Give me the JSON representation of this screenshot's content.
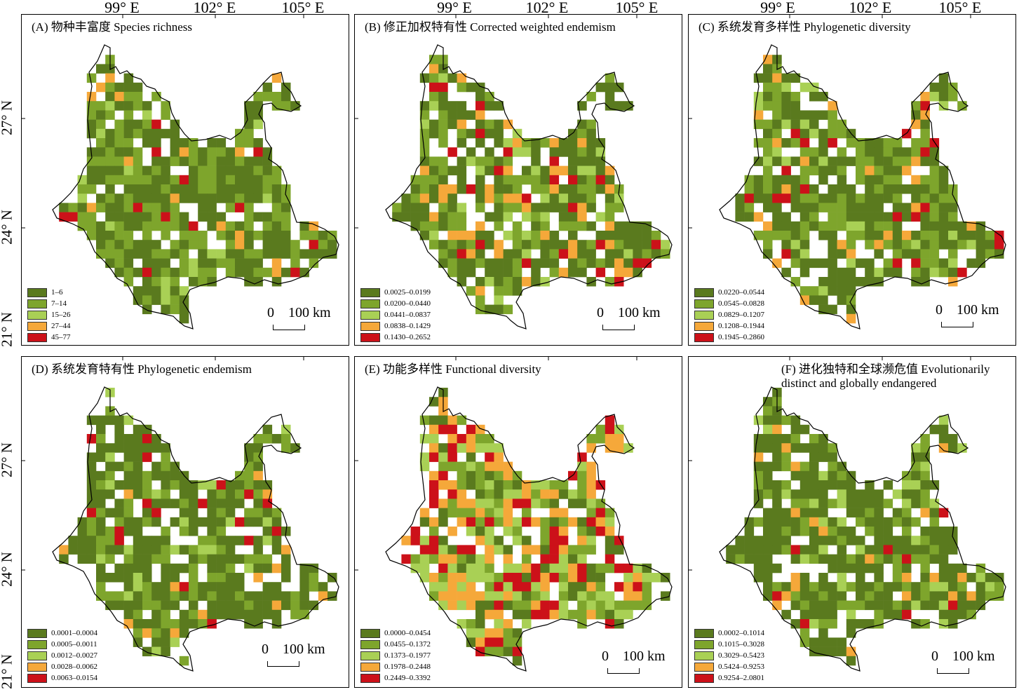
{
  "axes": {
    "longitude_labels": [
      "99° E",
      "102° E",
      "105° E"
    ],
    "latitude_labels": [
      "27° N",
      "24° N",
      "21° N"
    ]
  },
  "panels": [
    {
      "id": "A",
      "title": "(A) 物种丰富度 Species richness",
      "legend": [
        "1–6",
        "7–14",
        "15–26",
        "27–44",
        "45–77"
      ],
      "scalebar": {
        "zero": "0",
        "distance": "100 km"
      }
    },
    {
      "id": "B",
      "title": "(B) 修正加权特有性 Corrected weighted endemism",
      "legend": [
        "0.0025–0.0199",
        "0.0200–0.0440",
        "0.0441–0.0837",
        "0.0838–0.1429",
        "0.1430–0.2652"
      ],
      "scalebar": {
        "zero": "0",
        "distance": "100 km"
      }
    },
    {
      "id": "C",
      "title": "(C) 系统发育多样性 Phylogenetic diversity",
      "legend": [
        "0.0220–0.0544",
        "0.0545–0.0828",
        "0.0829–0.1207",
        "0.1208–0.1944",
        "0.1945–0.2860"
      ],
      "scalebar": {
        "zero": "0",
        "distance": "100 km"
      }
    },
    {
      "id": "D",
      "title": "(D) 系统发育特有性 Phylogenetic endemism",
      "legend": [
        "0.0001–0.0004",
        "0.0005–0.0011",
        "0.0012–0.0027",
        "0.0028–0.0062",
        "0.0063–0.0154"
      ],
      "scalebar": {
        "zero": "0",
        "distance": "100 km"
      }
    },
    {
      "id": "E",
      "title": "(E) 功能多样性 Functional diversity",
      "legend": [
        "0.0000–0.0454",
        "0.0455–0.1372",
        "0.1373–0.1977",
        "0.1978–0.2448",
        "0.2449–0.3392"
      ],
      "scalebar": {
        "zero": "0",
        "distance": "100 km"
      }
    },
    {
      "id": "F",
      "title": "(F) 进化独特和全球濒危值 Evolutionarily distinct and globally endangered",
      "legend": [
        "0.0002–0.1014",
        "0.1015–0.3028",
        "0.3029–0.5423",
        "0.5424–0.9253",
        "0.9254–2.0801"
      ],
      "scalebar": {
        "zero": "0",
        "distance": "100 km"
      }
    }
  ],
  "legend_colors": [
    "#5a7a1e",
    "#7ea52c",
    "#a9d055",
    "#f5a83a",
    "#cc1119"
  ],
  "color_weights": {
    "A": [
      0.55,
      0.33,
      0.05,
      0.04,
      0.03
    ],
    "B": [
      0.5,
      0.28,
      0.08,
      0.09,
      0.05
    ],
    "C": [
      0.5,
      0.3,
      0.08,
      0.08,
      0.04
    ],
    "D": [
      0.58,
      0.25,
      0.07,
      0.05,
      0.05
    ],
    "E": [
      0.2,
      0.2,
      0.2,
      0.22,
      0.18
    ],
    "F": [
      0.62,
      0.2,
      0.1,
      0.05,
      0.03
    ]
  }
}
